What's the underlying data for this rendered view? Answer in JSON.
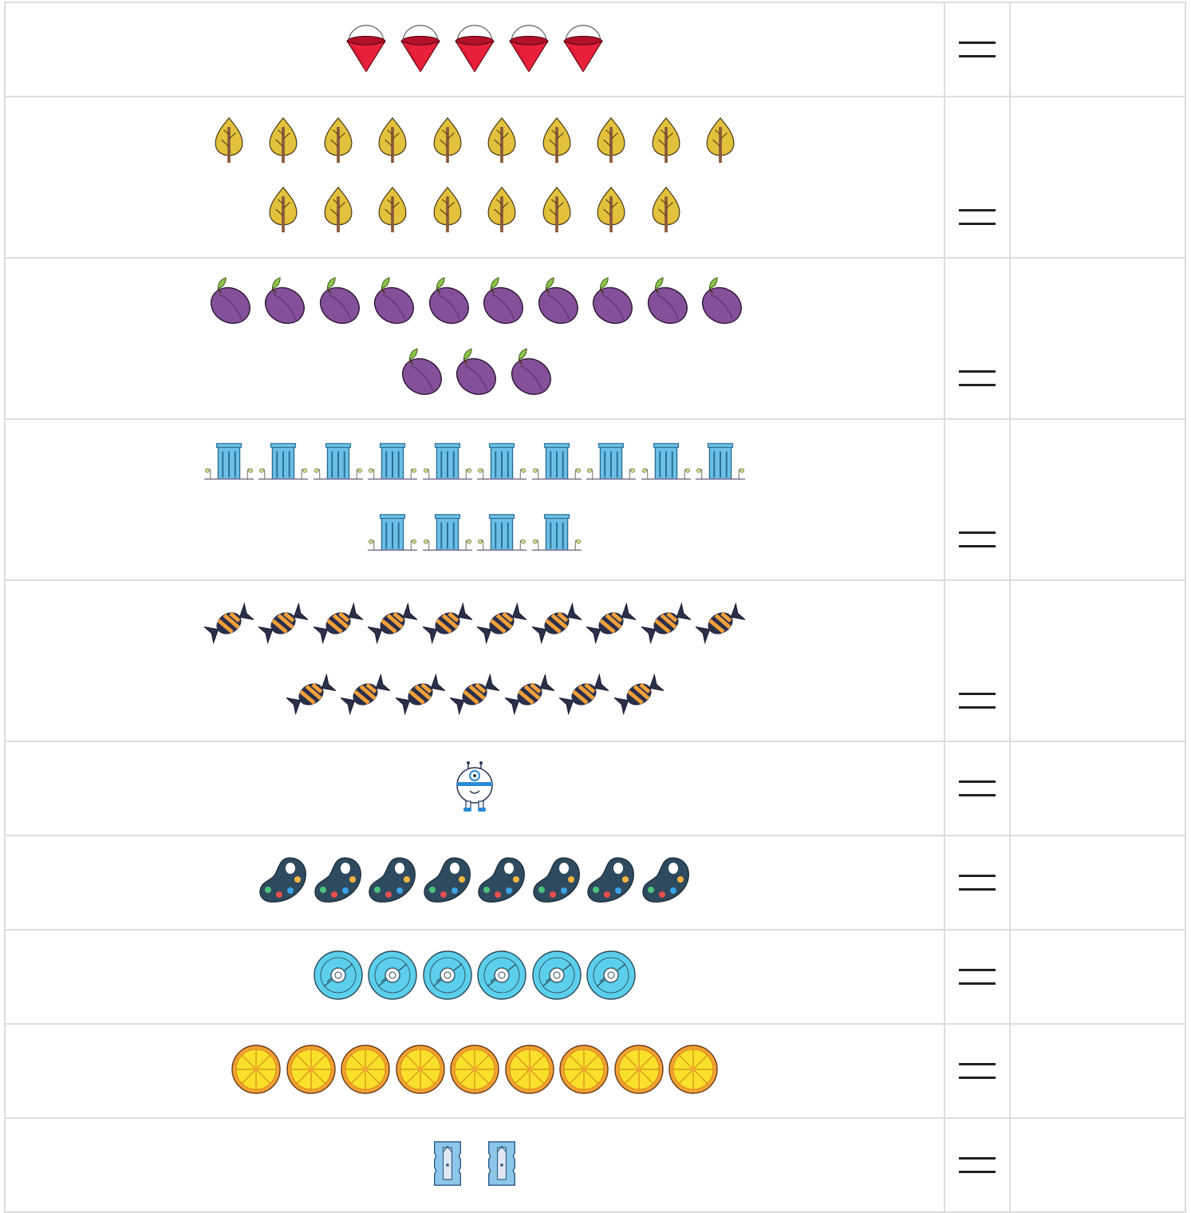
{
  "rows": [
    {
      "icon": "bucket-icon",
      "counts": [
        5
      ],
      "gap": 68,
      "size": 60
    },
    {
      "icon": "tree-icon",
      "counts": [
        10,
        8
      ],
      "gap": 68.5,
      "size": 60
    },
    {
      "icon": "plum-icon",
      "counts": [
        10,
        3
      ],
      "gap": 68.5,
      "size": 62
    },
    {
      "icon": "building-icon",
      "counts": [
        10,
        4
      ],
      "gap": 68.5,
      "size": 62
    },
    {
      "icon": "candy-icon",
      "counts": [
        10,
        7
      ],
      "gap": 68.5,
      "size": 62
    },
    {
      "icon": "robot-icon",
      "counts": [
        1
      ],
      "gap": 68,
      "size": 64
    },
    {
      "icon": "palette-icon",
      "counts": [
        8
      ],
      "gap": 68.5,
      "size": 64
    },
    {
      "icon": "cd-icon",
      "counts": [
        6
      ],
      "gap": 68.5,
      "size": 64
    },
    {
      "icon": "orange-slice-icon",
      "counts": [
        9
      ],
      "gap": 68.5,
      "size": 64
    },
    {
      "icon": "sharpener-icon",
      "counts": [
        2
      ],
      "gap": 68.5,
      "size": 58
    }
  ],
  "colors": {
    "border": "#dddddd",
    "equals": "#222222"
  },
  "answers": [
    "",
    "",
    "",
    "",
    "",
    "",
    "",
    "",
    "",
    ""
  ]
}
